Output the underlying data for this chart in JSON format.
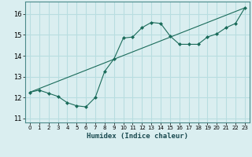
{
  "xlabel": "Humidex (Indice chaleur)",
  "bg_color": "#daeef0",
  "grid_color": "#b8dde0",
  "line_color": "#1a6b5a",
  "xlim": [
    -0.5,
    23.5
  ],
  "ylim": [
    10.8,
    16.6
  ],
  "yticks": [
    11,
    12,
    13,
    14,
    15,
    16
  ],
  "xticks": [
    0,
    1,
    2,
    3,
    4,
    5,
    6,
    7,
    8,
    9,
    10,
    11,
    12,
    13,
    14,
    15,
    16,
    17,
    18,
    19,
    20,
    21,
    22,
    23
  ],
  "curve_x": [
    0,
    1,
    2,
    3,
    4,
    5,
    6,
    7,
    8,
    9,
    10,
    11,
    12,
    13,
    14,
    15,
    16,
    17,
    18,
    19,
    20,
    21,
    22,
    23
  ],
  "curve_y": [
    12.25,
    12.35,
    12.2,
    12.05,
    11.75,
    11.6,
    11.55,
    12.0,
    13.25,
    13.85,
    14.85,
    14.9,
    15.35,
    15.6,
    15.55,
    14.95,
    14.55,
    14.55,
    14.55,
    14.9,
    15.05,
    15.35,
    15.55,
    16.3
  ],
  "line2_x": [
    0,
    23
  ],
  "line2_y": [
    12.25,
    16.3
  ]
}
